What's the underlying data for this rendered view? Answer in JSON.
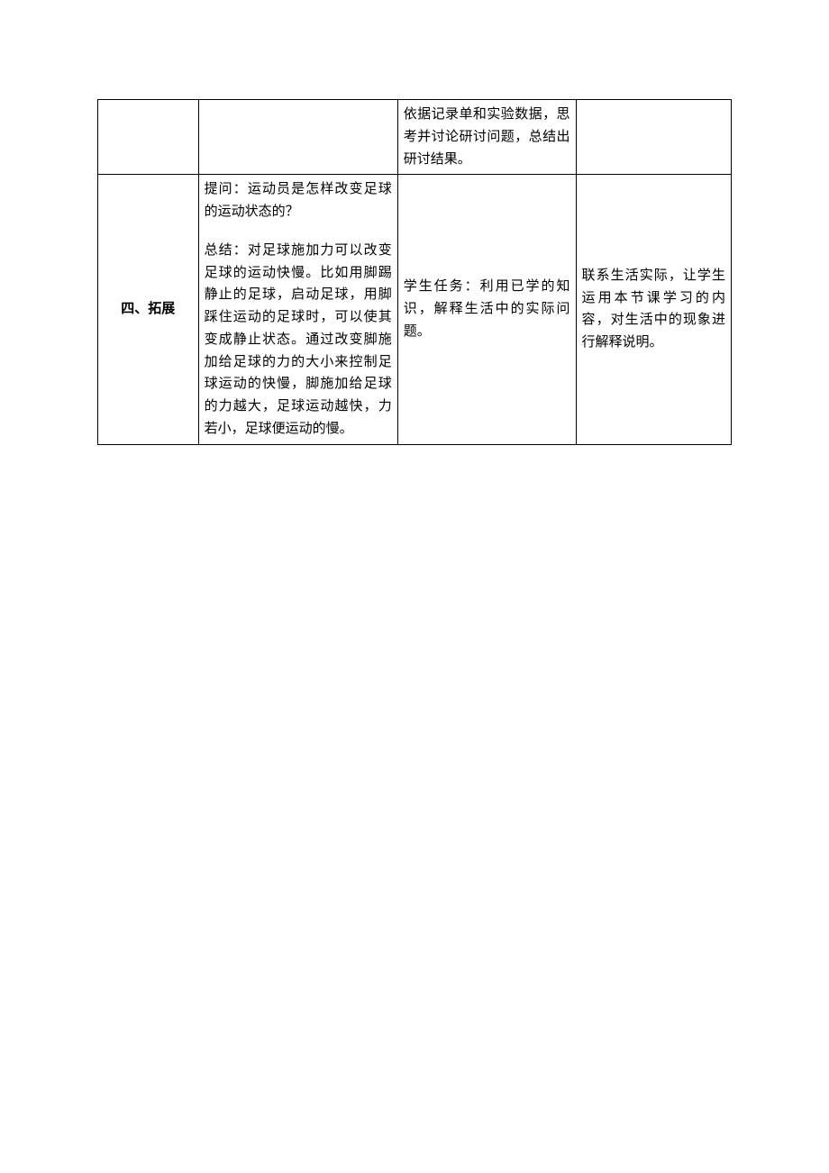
{
  "table": {
    "border_color": "#000000",
    "background_color": "#ffffff",
    "font_family": "SimSun",
    "font_size": 15,
    "line_height": 1.65,
    "columns": {
      "col1_width": 110,
      "col2_width": 218,
      "col3_width": 195,
      "col4_width": 170
    },
    "rows": [
      {
        "col1": "",
        "col2": "",
        "col3": "依据记录单和实验数据，思考并讨论研讨问题，总结出研讨结果。",
        "col4": ""
      },
      {
        "col1": "四、拓展",
        "col2_para1": "提问：运动员是怎样改变足球的运动状态的？",
        "col2_para2": "总结：对足球施加力可以改变足球的运动快慢。比如用脚踢静止的足球，启动足球，用脚踩住运动的足球时，可以使其变成静止状态。通过改变脚施加给足球的力的大小来控制足球运动的快慢，脚施加给足球的力越大，足球运动越快，力若小，足球便运动的慢。",
        "col3": "学生任务：利用已学的知识，解释生活中的实际问题。",
        "col4": "联系生活实际，让学生运用本节课学习的内容，对生活中的现象进行解释说明。"
      }
    ]
  }
}
